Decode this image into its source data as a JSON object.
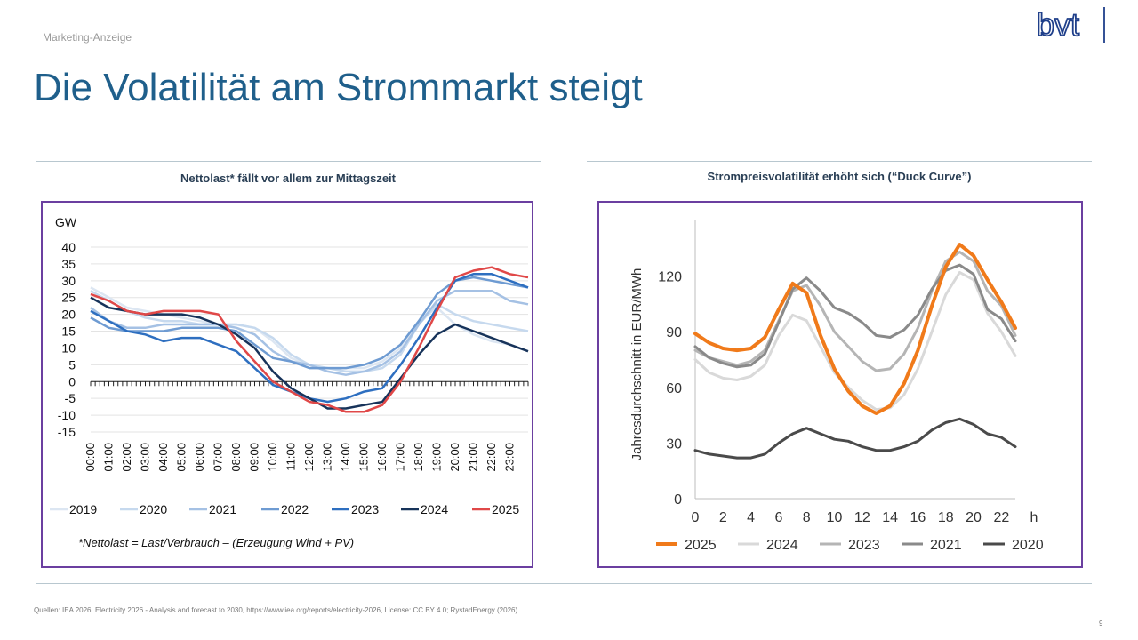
{
  "header": {
    "marketing_label": "Marketing-Anzeige",
    "title": "Die Volatilität am Strommarkt steigt",
    "logo_text": "bvt"
  },
  "footer": {
    "sources": "Quellen: IEA 2026; Electricity 2026 - Analysis and forecast to 2030, https://www.iea.org/reports/electricity-2026, License: CC BY 4.0; RystadEnergy (2026)",
    "page_number": "9"
  },
  "colors": {
    "accent": "#1f5f8b",
    "frame": "#6b3fa0"
  },
  "chart_data": [
    {
      "type": "line",
      "title": "Nettolast* fällt vor allem zur Mittagszeit",
      "ylabel": "GW",
      "footnote": "*Nettolast = Last/Verbrauch – (Erzeugung Wind + PV)",
      "ylim": [
        -15,
        40
      ],
      "yticks": [
        40,
        35,
        30,
        25,
        20,
        15,
        10,
        5,
        0,
        -5,
        -10,
        -15
      ],
      "categories": [
        "00:00",
        "01:00",
        "02:00",
        "03:00",
        "04:00",
        "05:00",
        "06:00",
        "07:00",
        "08:00",
        "09:00",
        "10:00",
        "11:00",
        "12:00",
        "13:00",
        "14:00",
        "15:00",
        "16:00",
        "17:00",
        "18:00",
        "19:00",
        "20:00",
        "21:00",
        "22:00",
        "23:00"
      ],
      "x": [
        0,
        1,
        2,
        3,
        4,
        5,
        6,
        7,
        8,
        9,
        10,
        11,
        12,
        13,
        14,
        15,
        16,
        17,
        18,
        19,
        20,
        21,
        22,
        23,
        24
      ],
      "legend_position": "bottom",
      "grid": "horizontal",
      "series": [
        {
          "name": "2019",
          "color": "#dce6f2",
          "values": [
            28,
            25,
            22,
            21,
            20,
            19,
            18,
            17,
            17,
            16,
            12,
            7,
            5,
            4,
            4,
            4,
            6,
            10,
            18,
            22,
            17,
            14,
            12,
            11,
            9
          ]
        },
        {
          "name": "2020",
          "color": "#c6d9ee",
          "values": [
            27,
            24,
            21,
            19,
            18,
            18,
            17,
            17,
            17,
            16,
            13,
            8,
            5,
            4,
            3,
            3,
            4,
            8,
            17,
            23,
            20,
            18,
            17,
            16,
            15
          ]
        },
        {
          "name": "2021",
          "color": "#a5c1e4",
          "values": [
            22,
            18,
            16,
            16,
            17,
            17,
            17,
            17,
            16,
            14,
            9,
            6,
            5,
            3,
            2,
            3,
            5,
            9,
            17,
            24,
            27,
            27,
            27,
            24,
            23
          ]
        },
        {
          "name": "2022",
          "color": "#6e9bd2",
          "values": [
            19,
            16,
            15,
            15,
            15,
            16,
            16,
            16,
            15,
            11,
            7,
            6,
            4,
            4,
            4,
            5,
            7,
            11,
            18,
            26,
            30,
            31,
            30,
            29,
            28
          ]
        },
        {
          "name": "2023",
          "color": "#2e6fc0",
          "values": [
            21,
            18,
            15,
            14,
            12,
            13,
            13,
            11,
            9,
            4,
            -1,
            -3,
            -5,
            -6,
            -5,
            -3,
            -2,
            5,
            13,
            22,
            30,
            32,
            32,
            30,
            28
          ]
        },
        {
          "name": "2024",
          "color": "#17335a",
          "values": [
            25,
            22,
            21,
            20,
            20,
            20,
            19,
            17,
            14,
            10,
            3,
            -2,
            -5,
            -8,
            -8,
            -7,
            -6,
            1,
            8,
            14,
            17,
            15,
            13,
            11,
            9
          ]
        },
        {
          "name": "2025",
          "color": "#e04848",
          "values": [
            26,
            24,
            21,
            20,
            21,
            21,
            21,
            20,
            12,
            6,
            0,
            -3,
            -6,
            -7,
            -9,
            -9,
            -7,
            0,
            10,
            21,
            31,
            33,
            34,
            32,
            31
          ]
        }
      ]
    },
    {
      "type": "line",
      "title": "Strompreisvolatilität erhöht sich (“Duck Curve”)",
      "ylabel": "Jahresdurchschnitt in EUR/MWh",
      "xlabel": "h",
      "ylim": [
        0,
        150
      ],
      "yticks": [
        0,
        30,
        60,
        90,
        120
      ],
      "xticks": [
        0,
        2,
        4,
        6,
        8,
        10,
        12,
        14,
        16,
        18,
        20,
        22
      ],
      "x": [
        0,
        1,
        2,
        3,
        4,
        5,
        6,
        7,
        8,
        9,
        10,
        11,
        12,
        13,
        14,
        15,
        16,
        17,
        18,
        19,
        20,
        21,
        22,
        23
      ],
      "legend_position": "bottom",
      "grid": "none",
      "series": [
        {
          "name": "2024",
          "color": "#d9d9d9",
          "width": 3,
          "values": [
            75,
            68,
            65,
            64,
            66,
            72,
            88,
            99,
            96,
            82,
            68,
            60,
            53,
            48,
            49,
            56,
            70,
            90,
            110,
            122,
            118,
            100,
            90,
            77
          ]
        },
        {
          "name": "2023",
          "color": "#b5b5b5",
          "width": 3,
          "values": [
            80,
            76,
            74,
            72,
            74,
            80,
            96,
            112,
            115,
            104,
            90,
            82,
            74,
            69,
            70,
            78,
            92,
            112,
            128,
            133,
            128,
            112,
            104,
            88
          ]
        },
        {
          "name": "2021",
          "color": "#8a8a8a",
          "width": 3,
          "values": [
            82,
            76,
            73,
            71,
            72,
            78,
            95,
            113,
            119,
            112,
            103,
            100,
            95,
            88,
            87,
            91,
            99,
            113,
            123,
            126,
            121,
            102,
            97,
            85
          ]
        },
        {
          "name": "2020",
          "color": "#4a4a4a",
          "width": 3,
          "values": [
            26,
            24,
            23,
            22,
            22,
            24,
            30,
            35,
            38,
            35,
            32,
            31,
            28,
            26,
            26,
            28,
            31,
            37,
            41,
            43,
            40,
            35,
            33,
            28
          ]
        },
        {
          "name": "2025",
          "color": "#f07a1a",
          "width": 4,
          "values": [
            89,
            84,
            81,
            80,
            81,
            87,
            102,
            116,
            111,
            88,
            70,
            58,
            50,
            46,
            50,
            62,
            80,
            104,
            125,
            137,
            131,
            118,
            106,
            92
          ]
        }
      ],
      "legend_order": [
        "2025",
        "2024",
        "2023",
        "2021",
        "2020"
      ]
    }
  ]
}
